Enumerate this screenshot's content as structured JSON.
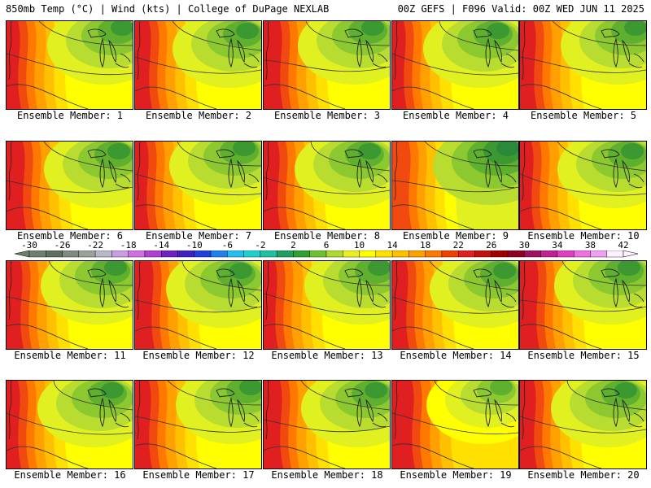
{
  "header": {
    "left_title": "850mb Temp (°C) | Wind (kts) | College of DuPage NEXLAB",
    "right_title": "00Z GEFS | F096 Valid: 00Z WED JUN 11 2025"
  },
  "members": [
    {
      "label": "Ensemble Member: 1",
      "warmth": 0.55
    },
    {
      "label": "Ensemble Member: 2",
      "warmth": 0.62
    },
    {
      "label": "Ensemble Member: 3",
      "warmth": 0.5
    },
    {
      "label": "Ensemble Member: 4",
      "warmth": 0.4
    },
    {
      "label": "Ensemble Member: 5",
      "warmth": 0.58
    },
    {
      "label": "Ensemble Member: 6",
      "warmth": 0.5
    },
    {
      "label": "Ensemble Member: 7",
      "warmth": 0.6
    },
    {
      "label": "Ensemble Member: 8",
      "warmth": 0.52
    },
    {
      "label": "Ensemble Member: 9",
      "warmth": 0.35
    },
    {
      "label": "Ensemble Member: 10",
      "warmth": 0.55
    },
    {
      "label": "Ensemble Member: 11",
      "warmth": 0.6
    },
    {
      "label": "Ensemble Member: 12",
      "warmth": 0.62
    },
    {
      "label": "Ensemble Member: 13",
      "warmth": 0.58
    },
    {
      "label": "Ensemble Member: 14",
      "warmth": 0.45
    },
    {
      "label": "Ensemble Member: 15",
      "warmth": 0.6
    },
    {
      "label": "Ensemble Member: 16",
      "warmth": 0.5
    },
    {
      "label": "Ensemble Member: 17",
      "warmth": 0.5
    },
    {
      "label": "Ensemble Member: 18",
      "warmth": 0.45
    },
    {
      "label": "Ensemble Member: 19",
      "warmth": 0.72
    },
    {
      "label": "Ensemble Member: 20",
      "warmth": 0.55
    }
  ],
  "colorbar": {
    "tick_labels": [
      "-30",
      "-26",
      "-22",
      "-18",
      "-14",
      "-10",
      "-6",
      "-2",
      "2",
      "6",
      "10",
      "14",
      "18",
      "22",
      "26",
      "30",
      "34",
      "38",
      "42"
    ],
    "colors": [
      "#6e7f6e",
      "#5f6f5f",
      "#808a80",
      "#9aa09a",
      "#b8b8c8",
      "#c8a0e0",
      "#d070e0",
      "#b040d0",
      "#7020c0",
      "#4020c0",
      "#2040e0",
      "#2080f0",
      "#20c0f0",
      "#20d0d0",
      "#20c0a0",
      "#20a060",
      "#30a030",
      "#70c030",
      "#b0d830",
      "#e8f020",
      "#ffff00",
      "#ffe000",
      "#ffc000",
      "#ffa000",
      "#ff7800",
      "#f04000",
      "#e02020",
      "#c01010",
      "#a00000",
      "#900020",
      "#a01060",
      "#c02090",
      "#e040c0",
      "#f070e0",
      "#f0a0f0",
      "#fff0ff"
    ]
  }
}
